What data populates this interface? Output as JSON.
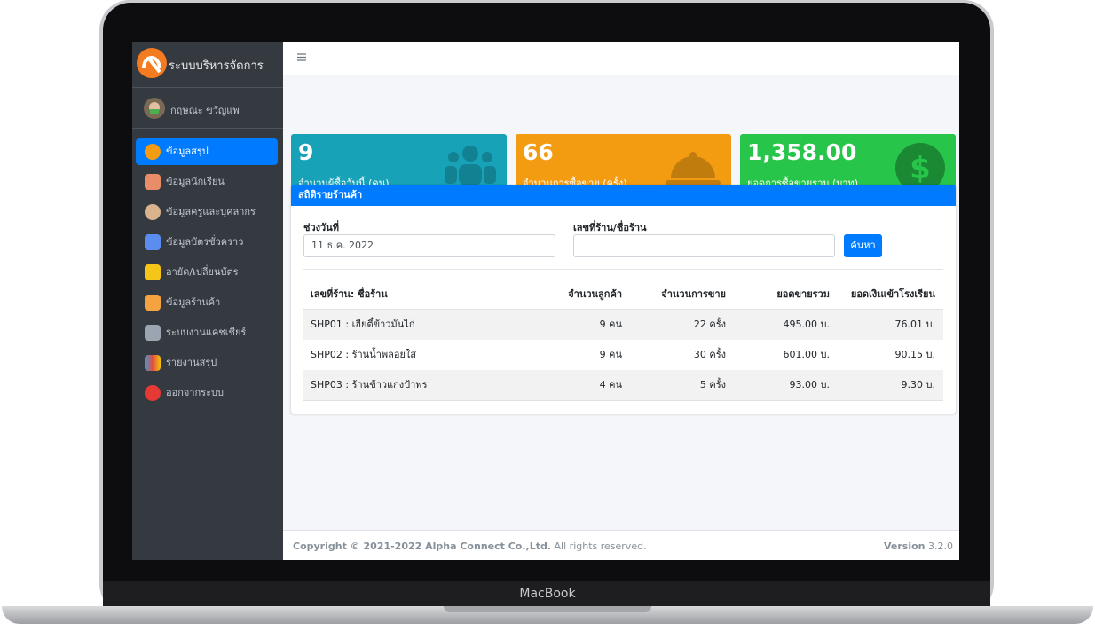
{
  "device_label": "MacBook",
  "sidebar": {
    "brand": "ระบบบริหารจัดการ",
    "user": "กฤษณะ ขวัญแพ",
    "menu": [
      "ข้อมูลสรุป",
      "ข้อมูลนักเรียน",
      "ข้อมูลครูและบุคลากร",
      "ข้อมูลบัตรชั่วคราว",
      "อายัด/เปลี่ยนบัตร",
      "ข้อมูลร้านค้า",
      "ระบบงานแคชเชียร์",
      "รายงานสรุป",
      "ออกจากระบบ"
    ]
  },
  "info_boxes": [
    {
      "value": "9",
      "label": "จำนวนผู้ซื้อวันนี้ (คน)"
    },
    {
      "value": "66",
      "label": "จำนวนการซื้อขาย (ครั้ง)"
    },
    {
      "value": "1,358.00",
      "label": "ยอดการซื้อขายรวม (บาท)"
    }
  ],
  "card": {
    "title": "สถิติรายร้านค้า",
    "form": {
      "date_label": "ช่วงวันที่",
      "date_value": "11 ธ.ค. 2022",
      "shop_label": "เลขที่ร้าน/ชื่อร้าน",
      "button": "ค้นหา"
    },
    "table": {
      "headers": [
        "เลขที่ร้าน: ชื่อร้าน",
        "จำนวนลูกค้า",
        "จำนวนการขาย",
        "ยอดขายรวม",
        "ยอดเงินเข้าโรงเรียน"
      ],
      "rows": [
        [
          "SHP01 : เฮียตี๋ข้าวมันไก่",
          "9 คน",
          "22 ครั้ง",
          "495.00 บ.",
          "76.01 บ."
        ],
        [
          "SHP02 : ร้านน้ำพลอยใส",
          "9 คน",
          "30 ครั้ง",
          "601.00 บ.",
          "90.15 บ."
        ],
        [
          "SHP03 : ร้านข้าวแกงป้าพร",
          "4 คน",
          "5 ครั้ง",
          "93.00 บ.",
          "9.30 บ."
        ]
      ]
    }
  },
  "footer": {
    "copyright": "Copyright © 2021-2022 Alpha Connect Co.,Ltd.",
    "rights": "All rights reserved.",
    "version_label": "Version",
    "version": "3.2.0"
  }
}
